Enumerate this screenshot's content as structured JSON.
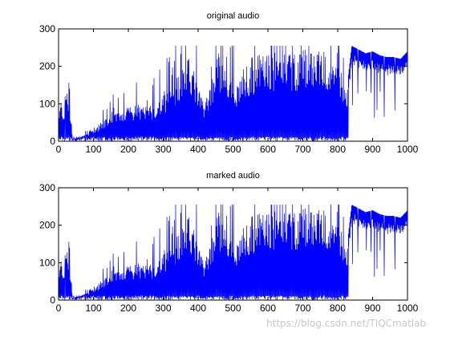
{
  "figure": {
    "background": "#ffffff",
    "axis_color": "#000000",
    "line_color": "#0000ff"
  },
  "chart_data": [
    {
      "type": "line",
      "title": "original audio",
      "xlabel": "",
      "ylabel": "",
      "xlim": [
        0,
        1000
      ],
      "ylim": [
        0,
        300
      ],
      "x_ticks": [
        0,
        100,
        200,
        300,
        400,
        500,
        600,
        700,
        800,
        900,
        1000
      ],
      "y_ticks": [
        0,
        100,
        200,
        300
      ],
      "grid": false,
      "series": [
        {
          "x": [
            0,
            8,
            15,
            22,
            30,
            40,
            50,
            60,
            80,
            100,
            120,
            150,
            180,
            200,
            230,
            260,
            290,
            320,
            340,
            360,
            380,
            400,
            420,
            440,
            455,
            470,
            500,
            550,
            600,
            650,
            700,
            750,
            800,
            825,
            840,
            860,
            880,
            900,
            920,
            940,
            960,
            980,
            1000
          ],
          "y": [
            80,
            115,
            60,
            175,
            95,
            10,
            0,
            12,
            20,
            35,
            50,
            70,
            85,
            90,
            100,
            95,
            125,
            150,
            180,
            215,
            225,
            140,
            110,
            175,
            255,
            205,
            150,
            225,
            240,
            235,
            245,
            250,
            240,
            130,
            255,
            245,
            235,
            240,
            230,
            225,
            225,
            220,
            240
          ]
        }
      ]
    },
    {
      "type": "line",
      "title": "marked audio",
      "xlabel": "",
      "ylabel": "",
      "xlim": [
        0,
        1000
      ],
      "ylim": [
        0,
        300
      ],
      "x_ticks": [
        0,
        100,
        200,
        300,
        400,
        500,
        600,
        700,
        800,
        900,
        1000
      ],
      "y_ticks": [
        0,
        100,
        200,
        300
      ],
      "grid": false,
      "series": [
        {
          "x": [
            0,
            8,
            15,
            22,
            30,
            40,
            50,
            60,
            80,
            100,
            120,
            150,
            180,
            200,
            230,
            260,
            290,
            320,
            340,
            360,
            380,
            400,
            420,
            440,
            455,
            470,
            500,
            550,
            600,
            650,
            700,
            750,
            800,
            825,
            840,
            860,
            880,
            900,
            920,
            940,
            960,
            980,
            1000
          ],
          "y": [
            80,
            115,
            60,
            175,
            95,
            10,
            0,
            12,
            20,
            35,
            50,
            70,
            85,
            90,
            100,
            95,
            125,
            150,
            180,
            215,
            225,
            140,
            110,
            175,
            255,
            205,
            150,
            225,
            240,
            235,
            245,
            250,
            240,
            130,
            255,
            245,
            235,
            240,
            230,
            225,
            225,
            220,
            240
          ]
        }
      ]
    }
  ],
  "watermark": "https://blog.csdn.net/TIQCmatlab"
}
